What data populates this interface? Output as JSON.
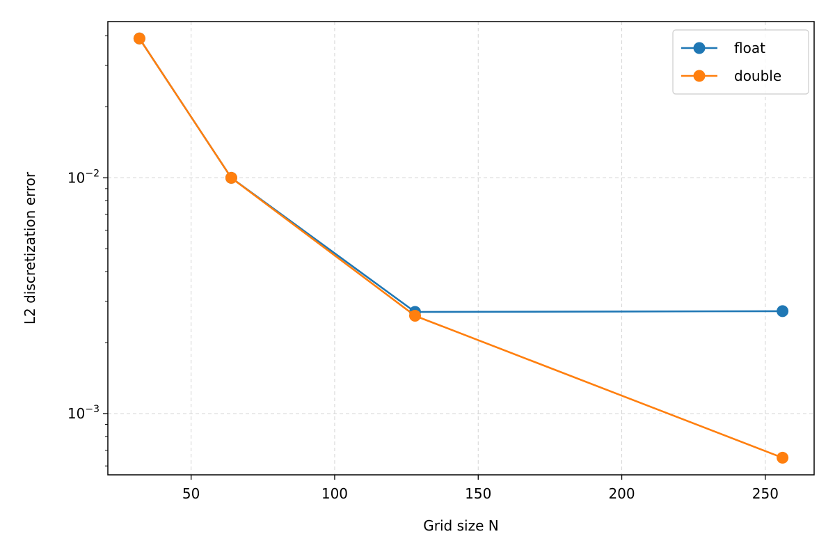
{
  "chart_data": {
    "type": "line",
    "xlabel": "Grid size N",
    "ylabel": "L2 discretization error",
    "xlim": [
      21,
      267
    ],
    "ylim": [
      0.00055,
      0.046
    ],
    "yscale": "log",
    "grid": true,
    "legend_position": "top-right",
    "x_ticks": [
      50,
      100,
      150,
      200,
      250
    ],
    "x_tick_labels": [
      "50",
      "100",
      "150",
      "200",
      "250"
    ],
    "y_major_ticks": [
      0.001,
      0.01
    ],
    "y_tick_labels": [
      {
        "base": "10",
        "exp": "−3"
      },
      {
        "base": "10",
        "exp": "−2"
      }
    ],
    "y_minor_ticks": [
      0.0006,
      0.0007,
      0.0008,
      0.0009,
      0.002,
      0.003,
      0.004,
      0.005,
      0.006,
      0.007,
      0.008,
      0.009,
      0.02,
      0.03,
      0.04
    ],
    "x": [
      32,
      64,
      128,
      256
    ],
    "series": [
      {
        "name": "float",
        "color": "#1f77b4",
        "values": [
          0.039,
          0.01,
          0.0027,
          0.00272
        ]
      },
      {
        "name": "double",
        "color": "#ff7f0e",
        "values": [
          0.039,
          0.01,
          0.0026,
          0.00065
        ]
      }
    ]
  }
}
